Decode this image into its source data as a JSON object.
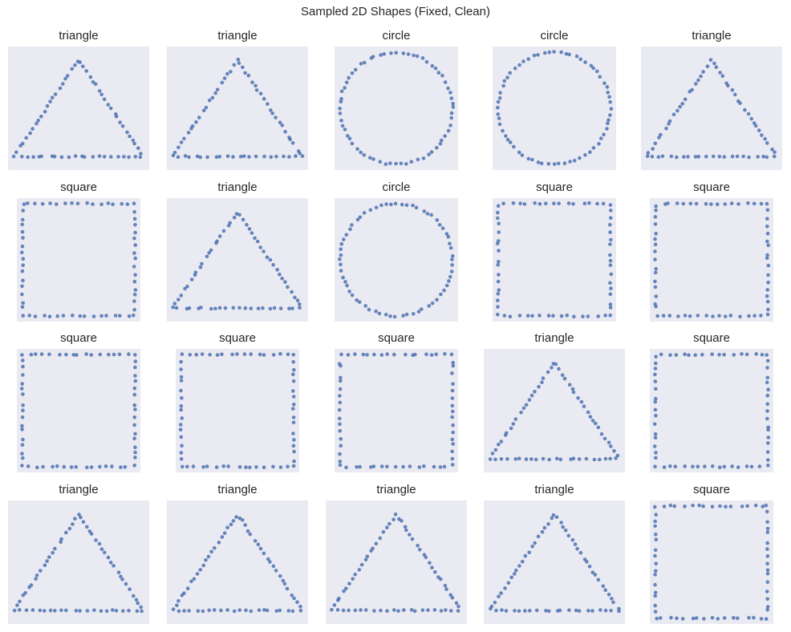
{
  "figure": {
    "title": "Sampled 2D Shapes (Fixed, Clean)",
    "background": "#eaeaf2",
    "point_color": "#4c72b0"
  },
  "chart_data": {
    "type": "scatter",
    "layout": {
      "rows": 4,
      "cols": 5
    },
    "points_per_panel": 64,
    "panels": [
      {
        "title": "triangle",
        "shape": "triangle"
      },
      {
        "title": "triangle",
        "shape": "triangle"
      },
      {
        "title": "circle",
        "shape": "circle"
      },
      {
        "title": "circle",
        "shape": "circle"
      },
      {
        "title": "triangle",
        "shape": "triangle"
      },
      {
        "title": "square",
        "shape": "square"
      },
      {
        "title": "triangle",
        "shape": "triangle"
      },
      {
        "title": "circle",
        "shape": "circle"
      },
      {
        "title": "square",
        "shape": "square"
      },
      {
        "title": "square",
        "shape": "square"
      },
      {
        "title": "square",
        "shape": "square"
      },
      {
        "title": "square",
        "shape": "square"
      },
      {
        "title": "square",
        "shape": "square"
      },
      {
        "title": "triangle",
        "shape": "triangle"
      },
      {
        "title": "square",
        "shape": "square"
      },
      {
        "title": "triangle",
        "shape": "triangle"
      },
      {
        "title": "triangle",
        "shape": "triangle"
      },
      {
        "title": "triangle",
        "shape": "triangle"
      },
      {
        "title": "triangle",
        "shape": "triangle"
      },
      {
        "title": "square",
        "shape": "square"
      }
    ]
  }
}
